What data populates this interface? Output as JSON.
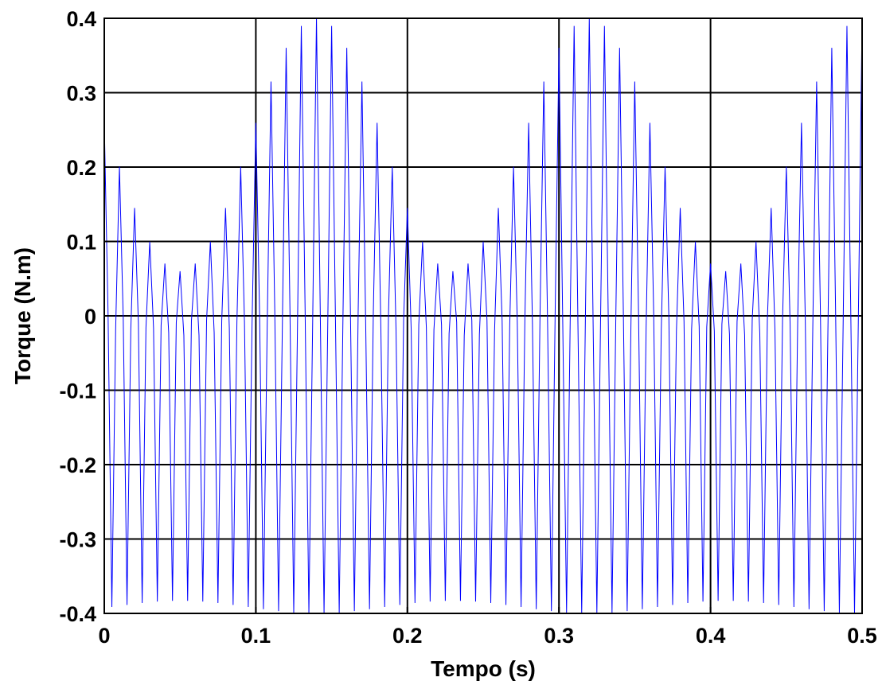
{
  "chart_data": {
    "type": "line",
    "title": "",
    "xlabel": "Tempo (s)",
    "ylabel": "Torque (N.m)",
    "xlim": [
      0,
      0.5
    ],
    "ylim": [
      -0.4,
      0.4
    ],
    "xticks": [
      0,
      0.1,
      0.2,
      0.3,
      0.4,
      0.5
    ],
    "xtick_labels": [
      "0",
      "0.1",
      "0.2",
      "0.3",
      "0.4",
      "0.5"
    ],
    "yticks": [
      -0.4,
      -0.3,
      -0.2,
      -0.1,
      0,
      0.1,
      0.2,
      0.3,
      0.4
    ],
    "ytick_labels": [
      "-0.4",
      "-0.3",
      "-0.2",
      "-0.1",
      "0",
      "0.1",
      "0.2",
      "0.3",
      "0.4"
    ],
    "grid": true,
    "legend": "none",
    "series": [
      {
        "color": "#0000ff",
        "description_values": {
          "sample_period_s": 0.005,
          "x_start": 0,
          "x_end": 0.5,
          "envelope_period_s": 0.18,
          "envelope_peak_times_s": [
            0.14,
            0.32
          ],
          "envelope_trough_times_s": [
            0.05,
            0.23,
            0.41
          ],
          "max_torque": 0.4,
          "min_torque": -0.4
        }
      }
    ]
  }
}
